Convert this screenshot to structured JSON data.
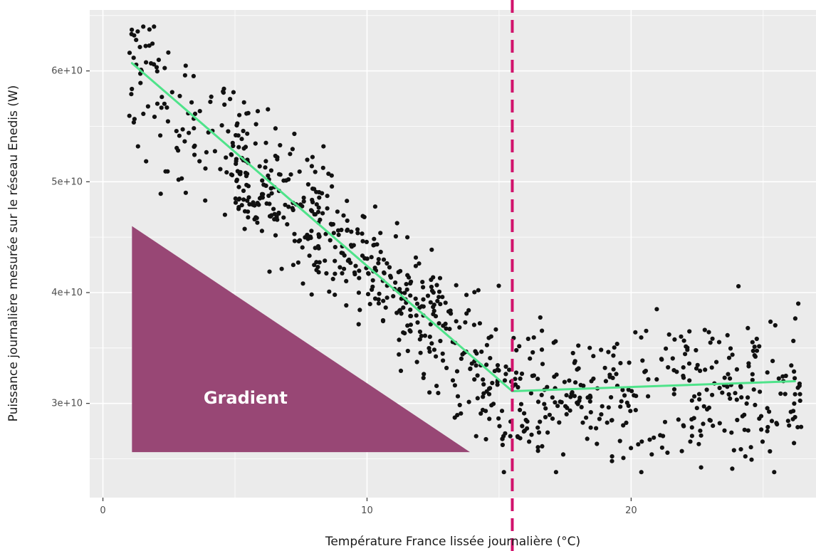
{
  "chart_data": {
    "type": "scatter",
    "title": "",
    "xlabel": "Température France lissée journalière (°C)",
    "ylabel": "Puissance journalière mesurée sur le réseau Enedis (W)",
    "xlim": [
      -0.5,
      27
    ],
    "ylim": [
      21500000000,
      65500000000
    ],
    "x_ticks": [
      0,
      10,
      20
    ],
    "x_tick_labels": [
      "0",
      "10",
      "20"
    ],
    "y_ticks": [
      30000000000,
      40000000000,
      50000000000,
      60000000000
    ],
    "y_tick_labels": [
      "3e+10",
      "4e+10",
      "5e+10",
      "6e+10"
    ],
    "grid": true,
    "colors": {
      "panel": "#ebebeb",
      "grid": "#ffffff",
      "points": "#111111",
      "fit_line": "#4fe38a",
      "threshold_line": "#d1126b",
      "triangle": "#984775"
    },
    "threshold": {
      "x": 15.5,
      "style": "dashed"
    },
    "fit_segments": [
      {
        "x": [
          1.1,
          15.5
        ],
        "y": [
          60700000000,
          31100000000
        ]
      },
      {
        "x": [
          15.5,
          26.2
        ],
        "y": [
          31100000000,
          32000000000
        ]
      }
    ],
    "annotation": {
      "text": "Gradient",
      "shape": "triangle",
      "vertices": [
        [
          1.1,
          46000000000
        ],
        [
          1.1,
          25600000000
        ],
        [
          13.9,
          25600000000
        ]
      ],
      "label_position": [
        5.4,
        30500000000
      ]
    },
    "points_summary": {
      "count": 900,
      "description_model": "piecewise-linear heating response",
      "x_range": [
        1,
        26.5
      ],
      "y_range": [
        23800000000,
        64000000000
      ]
    },
    "points_seed": 20240519
  }
}
